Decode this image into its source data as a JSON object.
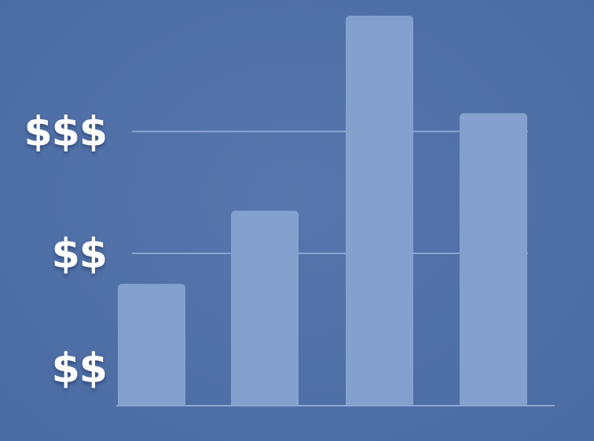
{
  "chart_data": {
    "type": "bar",
    "title": "",
    "xlabel": "",
    "ylabel": "",
    "categories": [
      "",
      "",
      "",
      ""
    ],
    "values": [
      1.0,
      1.6,
      3.2,
      2.4
    ],
    "ylim": [
      0,
      3.2
    ],
    "yticks": [
      {
        "value": 0,
        "label": "$$"
      },
      {
        "value": 1.25,
        "label": "$$"
      },
      {
        "value": 2.25,
        "label": "$$$"
      }
    ],
    "grid": true,
    "legend": "none",
    "colors": {
      "background": "#4f6fa7",
      "bar": "#84a1cd",
      "grid": "#8ca6d2",
      "label": "#ffffff"
    }
  }
}
